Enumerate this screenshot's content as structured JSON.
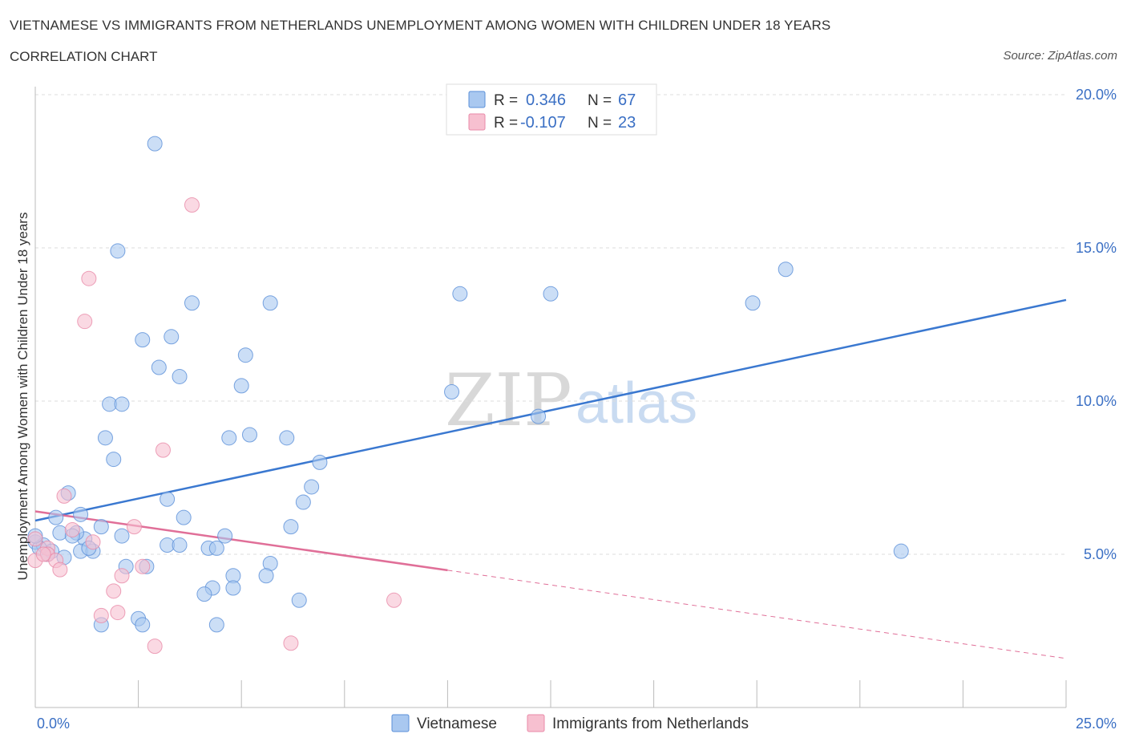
{
  "header": {
    "title": "VIETNAMESE VS IMMIGRANTS FROM NETHERLANDS UNEMPLOYMENT AMONG WOMEN WITH CHILDREN UNDER 18 YEARS",
    "subtitle": "CORRELATION CHART",
    "source": "Source: ZipAtlas.com"
  },
  "watermark": {
    "zip": "ZIP",
    "atlas": "atlas"
  },
  "legend": {
    "items": [
      {
        "r_label": "R =",
        "r_value": "0.346",
        "n_label": "N =",
        "n_value": "67",
        "color": "#a9c8f0",
        "stroke": "#5a8fd8"
      },
      {
        "r_label": "R =",
        "r_value": "-0.107",
        "n_label": "N =",
        "n_value": "23",
        "color": "#f7c0d0",
        "stroke": "#e88aa8"
      }
    ]
  },
  "bottom_legend": [
    {
      "label": "Vietnamese",
      "color": "#a9c8f0",
      "stroke": "#5a8fd8"
    },
    {
      "label": "Immigrants from Netherlands",
      "color": "#f7c0d0",
      "stroke": "#e88aa8"
    }
  ],
  "chart_data": {
    "type": "scatter",
    "title": "VIETNAMESE VS IMMIGRANTS FROM NETHERLANDS UNEMPLOYMENT AMONG WOMEN WITH CHILDREN UNDER 18 YEARS",
    "xlabel": "",
    "ylabel": "Unemployment Among Women with Children Under 18 years",
    "xlim": [
      0,
      25
    ],
    "ylim": [
      0,
      20
    ],
    "x_tick_labels": [
      "0.0%",
      "25.0%"
    ],
    "y_ticks": [
      5,
      10,
      15,
      20
    ],
    "y_tick_labels": [
      "5.0%",
      "10.0%",
      "15.0%",
      "20.0%"
    ],
    "grid": true,
    "series": [
      {
        "name": "Vietnamese",
        "color": "#a9c8f0",
        "stroke": "#5a8fd8",
        "trend": {
          "x": [
            0,
            25
          ],
          "y": [
            6.1,
            13.3
          ],
          "color": "#3a78d0"
        },
        "points": [
          [
            2.9,
            18.4
          ],
          [
            2.0,
            14.9
          ],
          [
            2.6,
            12.0
          ],
          [
            3.3,
            12.1
          ],
          [
            3.8,
            13.2
          ],
          [
            5.7,
            13.2
          ],
          [
            5.1,
            11.5
          ],
          [
            3.0,
            11.1
          ],
          [
            3.5,
            10.8
          ],
          [
            5.0,
            10.5
          ],
          [
            1.8,
            9.9
          ],
          [
            2.1,
            9.9
          ],
          [
            1.7,
            8.8
          ],
          [
            4.7,
            8.8
          ],
          [
            5.2,
            8.9
          ],
          [
            6.1,
            8.8
          ],
          [
            1.9,
            8.1
          ],
          [
            6.9,
            8.0
          ],
          [
            0.8,
            7.0
          ],
          [
            3.2,
            6.8
          ],
          [
            6.7,
            7.2
          ],
          [
            6.5,
            6.7
          ],
          [
            0.5,
            6.2
          ],
          [
            1.1,
            6.3
          ],
          [
            3.6,
            6.2
          ],
          [
            1.6,
            5.9
          ],
          [
            6.2,
            5.9
          ],
          [
            0.6,
            5.7
          ],
          [
            2.1,
            5.6
          ],
          [
            4.6,
            5.6
          ],
          [
            0.0,
            5.4
          ],
          [
            0.2,
            5.3
          ],
          [
            1.2,
            5.5
          ],
          [
            3.2,
            5.3
          ],
          [
            3.5,
            5.3
          ],
          [
            4.2,
            5.2
          ],
          [
            4.4,
            5.2
          ],
          [
            0.4,
            5.1
          ],
          [
            1.1,
            5.1
          ],
          [
            1.4,
            5.1
          ],
          [
            0.7,
            4.9
          ],
          [
            2.2,
            4.6
          ],
          [
            2.7,
            4.6
          ],
          [
            5.7,
            4.7
          ],
          [
            5.6,
            4.3
          ],
          [
            4.8,
            4.3
          ],
          [
            4.3,
            3.9
          ],
          [
            4.8,
            3.9
          ],
          [
            4.1,
            3.7
          ],
          [
            6.4,
            3.5
          ],
          [
            2.5,
            2.9
          ],
          [
            2.6,
            2.7
          ],
          [
            1.6,
            2.7
          ],
          [
            4.4,
            2.7
          ],
          [
            1.0,
            5.7
          ],
          [
            0.1,
            5.2
          ],
          [
            10.3,
            13.5
          ],
          [
            12.5,
            13.5
          ],
          [
            10.1,
            10.3
          ],
          [
            12.2,
            9.5
          ],
          [
            17.4,
            13.2
          ],
          [
            18.2,
            14.3
          ],
          [
            21.0,
            5.1
          ],
          [
            0.9,
            5.6
          ],
          [
            1.3,
            5.2
          ],
          [
            0.3,
            5.0
          ],
          [
            0.0,
            5.6
          ]
        ]
      },
      {
        "name": "Immigrants from Netherlands",
        "color": "#f7c0d0",
        "stroke": "#e88aa8",
        "trend": {
          "x": [
            0,
            25
          ],
          "y": [
            6.4,
            1.6
          ],
          "solid_until": 10,
          "color": "#e06f98"
        },
        "points": [
          [
            3.8,
            16.4
          ],
          [
            1.3,
            14.0
          ],
          [
            1.2,
            12.6
          ],
          [
            3.1,
            8.4
          ],
          [
            0.7,
            6.9
          ],
          [
            2.4,
            5.9
          ],
          [
            0.9,
            5.8
          ],
          [
            1.4,
            5.4
          ],
          [
            0.3,
            5.2
          ],
          [
            0.3,
            5.0
          ],
          [
            0.0,
            4.8
          ],
          [
            0.5,
            4.8
          ],
          [
            0.6,
            4.5
          ],
          [
            2.6,
            4.6
          ],
          [
            2.1,
            4.3
          ],
          [
            1.9,
            3.8
          ],
          [
            1.6,
            3.0
          ],
          [
            2.0,
            3.1
          ],
          [
            8.7,
            3.5
          ],
          [
            2.9,
            2.0
          ],
          [
            6.2,
            2.1
          ],
          [
            0.0,
            5.5
          ],
          [
            0.2,
            5.0
          ]
        ]
      }
    ]
  },
  "x_axis": {
    "left_label": "0.0%",
    "right_label": "25.0%"
  }
}
